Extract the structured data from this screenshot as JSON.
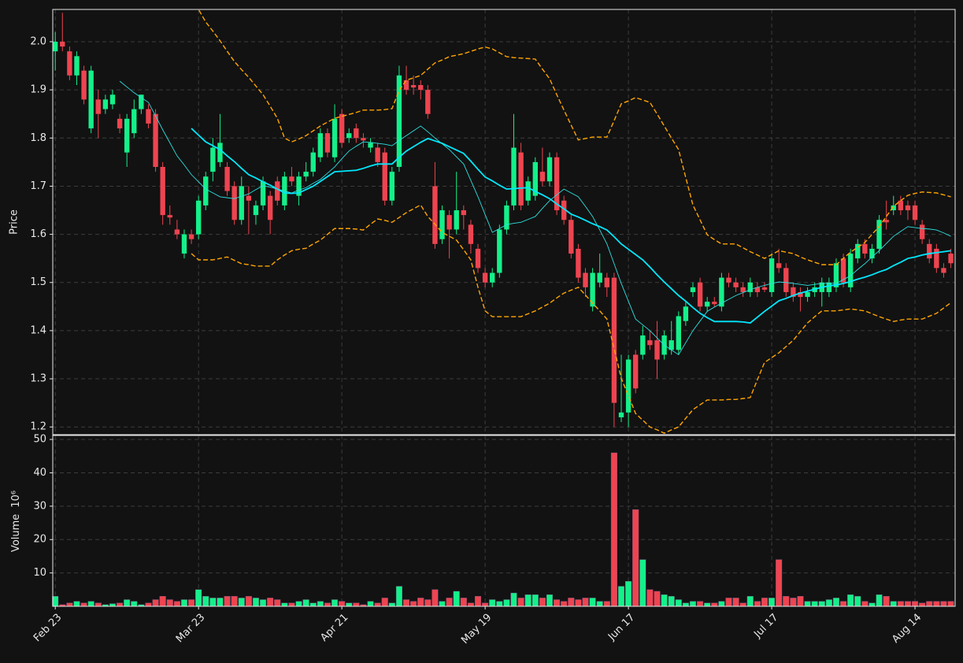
{
  "chart_data": {
    "type": "candlestick",
    "ylabel": "Price",
    "categories": [
      "Feb 23",
      null,
      null,
      null,
      null,
      null,
      null,
      null,
      null,
      null,
      null,
      null,
      null,
      null,
      null,
      null,
      null,
      null,
      null,
      null,
      "Mar 23",
      null,
      null,
      null,
      null,
      null,
      null,
      null,
      null,
      null,
      null,
      null,
      null,
      null,
      null,
      null,
      null,
      null,
      null,
      null,
      "Apr 21",
      null,
      null,
      null,
      null,
      null,
      null,
      null,
      null,
      null,
      null,
      null,
      null,
      null,
      null,
      null,
      null,
      null,
      null,
      null,
      "May 19",
      null,
      null,
      null,
      null,
      null,
      null,
      null,
      null,
      null,
      null,
      null,
      null,
      null,
      null,
      null,
      null,
      null,
      null,
      null,
      "Jun 17",
      null,
      null,
      null,
      null,
      null,
      null,
      null,
      null,
      null,
      null,
      null,
      null,
      null,
      null,
      null,
      null,
      null,
      null,
      null,
      "Jul 17",
      null,
      null,
      null,
      null,
      null,
      null,
      null,
      null,
      null,
      null,
      null,
      null,
      null,
      null,
      null,
      null,
      null,
      null,
      null,
      "Aug 14",
      null,
      null,
      null,
      null,
      null
    ],
    "open": [
      1.98,
      2.0,
      1.98,
      1.93,
      1.94,
      1.82,
      1.88,
      1.86,
      1.87,
      1.84,
      1.77,
      1.81,
      1.86,
      1.86,
      1.85,
      1.74,
      1.64,
      1.61,
      1.56,
      1.6,
      1.6,
      1.66,
      1.73,
      1.75,
      1.74,
      1.7,
      1.63,
      1.68,
      1.64,
      1.66,
      1.68,
      1.71,
      1.66,
      1.72,
      1.68,
      1.72,
      1.73,
      1.76,
      1.81,
      1.76,
      1.85,
      1.8,
      1.82,
      1.8,
      1.78,
      1.78,
      1.77,
      1.67,
      1.74,
      1.92,
      1.91,
      1.91,
      1.9,
      1.7,
      1.59,
      1.64,
      1.61,
      1.65,
      1.62,
      1.57,
      1.52,
      1.5,
      1.52,
      1.61,
      1.66,
      1.77,
      1.67,
      1.68,
      1.73,
      1.71,
      1.76,
      1.67,
      1.63,
      1.57,
      1.52,
      1.45,
      1.5,
      1.51,
      1.51,
      1.22,
      1.23,
      1.35,
      1.35,
      1.38,
      1.38,
      1.35,
      1.36,
      1.36,
      1.42,
      1.48,
      1.5,
      1.45,
      1.46,
      1.45,
      1.51,
      1.5,
      1.49,
      1.48,
      1.49,
      1.49,
      1.48,
      1.54,
      1.53,
      1.49,
      1.48,
      1.47,
      1.48,
      1.48,
      1.48,
      1.49,
      1.55,
      1.49,
      1.55,
      1.58,
      1.55,
      1.57,
      1.63,
      1.65,
      1.67,
      1.66,
      1.66,
      1.62,
      1.58,
      1.57,
      1.53,
      1.56
    ],
    "high": [
      2.02,
      2.06,
      1.99,
      1.98,
      1.95,
      1.95,
      1.9,
      1.89,
      1.9,
      1.85,
      1.85,
      1.88,
      1.89,
      1.87,
      1.86,
      1.75,
      1.66,
      1.63,
      1.61,
      1.61,
      1.68,
      1.73,
      1.8,
      1.85,
      1.75,
      1.71,
      1.72,
      1.7,
      1.67,
      1.72,
      1.69,
      1.72,
      1.73,
      1.74,
      1.73,
      1.75,
      1.78,
      1.82,
      1.82,
      1.87,
      1.86,
      1.82,
      1.83,
      1.81,
      1.8,
      1.79,
      1.78,
      1.74,
      1.95,
      1.95,
      1.93,
      1.92,
      1.91,
      1.75,
      1.66,
      1.65,
      1.73,
      1.66,
      1.63,
      1.58,
      1.53,
      1.53,
      1.62,
      1.67,
      1.85,
      1.79,
      1.72,
      1.76,
      1.78,
      1.77,
      1.77,
      1.68,
      1.64,
      1.58,
      1.53,
      1.53,
      1.56,
      1.52,
      1.52,
      1.35,
      1.35,
      1.36,
      1.41,
      1.4,
      1.42,
      1.4,
      1.42,
      1.44,
      1.46,
      1.5,
      1.51,
      1.47,
      1.47,
      1.52,
      1.52,
      1.51,
      1.5,
      1.51,
      1.5,
      1.5,
      1.56,
      1.57,
      1.54,
      1.5,
      1.49,
      1.49,
      1.5,
      1.51,
      1.51,
      1.55,
      1.56,
      1.57,
      1.59,
      1.59,
      1.58,
      1.64,
      1.67,
      1.68,
      1.68,
      1.67,
      1.67,
      1.63,
      1.59,
      1.58,
      1.54,
      1.57
    ],
    "low": [
      1.94,
      1.98,
      1.92,
      1.91,
      1.87,
      1.81,
      1.8,
      1.85,
      1.86,
      1.81,
      1.74,
      1.8,
      1.85,
      1.82,
      1.73,
      1.62,
      1.62,
      1.59,
      1.55,
      1.58,
      1.59,
      1.65,
      1.71,
      1.74,
      1.68,
      1.62,
      1.62,
      1.6,
      1.62,
      1.65,
      1.6,
      1.66,
      1.65,
      1.7,
      1.66,
      1.71,
      1.72,
      1.75,
      1.76,
      1.75,
      1.78,
      1.79,
      1.79,
      1.78,
      1.77,
      1.74,
      1.66,
      1.66,
      1.73,
      1.89,
      1.89,
      1.88,
      1.84,
      1.57,
      1.58,
      1.55,
      1.6,
      1.61,
      1.56,
      1.52,
      1.49,
      1.49,
      1.51,
      1.6,
      1.65,
      1.65,
      1.66,
      1.67,
      1.7,
      1.7,
      1.64,
      1.62,
      1.55,
      1.5,
      1.47,
      1.44,
      1.49,
      1.47,
      1.2,
      1.21,
      1.2,
      1.27,
      1.34,
      1.36,
      1.3,
      1.34,
      1.35,
      1.35,
      1.41,
      1.47,
      1.44,
      1.44,
      1.45,
      1.44,
      1.49,
      1.48,
      1.47,
      1.47,
      1.47,
      1.48,
      1.47,
      1.52,
      1.47,
      1.46,
      1.44,
      1.46,
      1.47,
      1.45,
      1.47,
      1.48,
      1.49,
      1.48,
      1.54,
      1.55,
      1.54,
      1.56,
      1.61,
      1.64,
      1.64,
      1.63,
      1.62,
      1.58,
      1.54,
      1.52,
      1.51,
      1.53
    ],
    "close": [
      2.0,
      1.99,
      1.93,
      1.97,
      1.88,
      1.94,
      1.85,
      1.88,
      1.89,
      1.82,
      1.84,
      1.86,
      1.89,
      1.83,
      1.74,
      1.64,
      1.635,
      1.6,
      1.6,
      1.59,
      1.67,
      1.72,
      1.78,
      1.79,
      1.69,
      1.63,
      1.7,
      1.67,
      1.66,
      1.71,
      1.63,
      1.67,
      1.72,
      1.71,
      1.72,
      1.73,
      1.77,
      1.81,
      1.77,
      1.84,
      1.79,
      1.81,
      1.8,
      1.795,
      1.79,
      1.75,
      1.67,
      1.73,
      1.93,
      1.9,
      1.905,
      1.9,
      1.85,
      1.58,
      1.65,
      1.61,
      1.65,
      1.64,
      1.58,
      1.53,
      1.5,
      1.52,
      1.61,
      1.66,
      1.78,
      1.66,
      1.71,
      1.75,
      1.71,
      1.76,
      1.65,
      1.63,
      1.56,
      1.51,
      1.49,
      1.52,
      1.52,
      1.49,
      1.25,
      1.23,
      1.34,
      1.28,
      1.39,
      1.37,
      1.34,
      1.39,
      1.38,
      1.43,
      1.45,
      1.49,
      1.45,
      1.46,
      1.455,
      1.51,
      1.5,
      1.49,
      1.48,
      1.5,
      1.48,
      1.485,
      1.55,
      1.53,
      1.48,
      1.47,
      1.47,
      1.48,
      1.49,
      1.5,
      1.5,
      1.54,
      1.5,
      1.56,
      1.58,
      1.56,
      1.57,
      1.63,
      1.625,
      1.66,
      1.65,
      1.65,
      1.63,
      1.59,
      1.55,
      1.53,
      1.52,
      1.54
    ],
    "up_color": "#14f08a",
    "down_color": "#ee4450",
    "lines": [
      {
        "color": "#00e8ff",
        "width": 1.8,
        "dashed": false,
        "values": [
          null,
          null,
          null,
          null,
          null,
          null,
          null,
          null,
          null,
          null,
          null,
          null,
          null,
          null,
          null,
          null,
          null,
          null,
          null,
          1.82,
          1.806,
          1.792,
          1.784,
          1.776,
          1.763,
          1.751,
          1.737,
          1.724,
          1.717,
          1.709,
          1.702,
          1.694,
          1.686,
          1.685,
          1.686,
          1.693,
          1.7,
          1.71,
          1.72,
          1.73,
          1.731,
          1.732,
          1.733,
          1.737,
          1.742,
          1.746,
          1.746,
          1.746,
          1.76,
          1.773,
          1.782,
          1.791,
          1.799,
          1.794,
          1.789,
          1.782,
          1.775,
          1.768,
          1.752,
          1.735,
          1.719,
          1.711,
          1.702,
          1.694,
          1.695,
          1.696,
          1.697,
          1.689,
          1.682,
          1.674,
          1.663,
          1.653,
          1.642,
          1.636,
          1.629,
          1.622,
          1.616,
          1.609,
          1.595,
          1.58,
          1.569,
          1.558,
          1.547,
          1.532,
          1.516,
          1.501,
          1.487,
          1.473,
          1.461,
          1.448,
          1.436,
          1.427,
          1.419,
          1.419,
          1.419,
          1.419,
          1.418,
          1.416,
          1.428,
          1.44,
          1.451,
          1.462,
          1.467,
          1.473,
          1.478,
          1.482,
          1.486,
          1.49,
          1.493,
          1.495,
          1.498,
          1.502,
          1.507,
          1.511,
          1.516,
          1.522,
          1.527,
          1.535,
          1.542,
          1.55,
          1.553,
          1.557,
          1.56,
          1.562,
          1.564,
          1.566
        ]
      },
      {
        "color": "#2ee0e0",
        "width": 0.9,
        "dashed": false,
        "values": [
          null,
          null,
          null,
          null,
          null,
          null,
          null,
          null,
          null,
          1.918,
          1.906,
          1.894,
          1.884,
          1.874,
          1.846,
          1.817,
          1.79,
          1.763,
          1.744,
          1.724,
          1.709,
          1.694,
          1.686,
          1.678,
          1.676,
          1.674,
          1.679,
          1.684,
          1.693,
          1.701,
          1.698,
          1.694,
          1.69,
          1.686,
          1.692,
          1.697,
          1.706,
          1.714,
          1.727,
          1.74,
          1.757,
          1.773,
          1.783,
          1.792,
          1.791,
          1.789,
          1.787,
          1.784,
          1.795,
          1.805,
          1.815,
          1.825,
          1.813,
          1.8,
          1.788,
          1.776,
          1.761,
          1.746,
          1.712,
          1.678,
          1.641,
          1.604,
          1.612,
          1.62,
          1.623,
          1.625,
          1.631,
          1.637,
          1.654,
          1.67,
          1.682,
          1.694,
          1.686,
          1.678,
          1.658,
          1.637,
          1.609,
          1.58,
          1.539,
          1.498,
          1.461,
          1.424,
          1.412,
          1.4,
          1.385,
          1.37,
          1.36,
          1.35,
          1.375,
          1.4,
          1.42,
          1.44,
          1.449,
          1.457,
          1.465,
          1.473,
          1.479,
          1.485,
          1.49,
          1.494,
          1.498,
          1.501,
          1.5,
          1.498,
          1.496,
          1.494,
          1.496,
          1.498,
          1.498,
          1.498,
          1.506,
          1.514,
          1.527,
          1.539,
          1.553,
          1.566,
          1.581,
          1.596,
          1.606,
          1.616,
          1.614,
          1.612,
          1.611,
          1.609,
          1.603,
          1.596
        ]
      },
      {
        "color": "#ffa500",
        "width": 1.4,
        "dashed": true,
        "values": [
          null,
          null,
          null,
          null,
          null,
          null,
          null,
          null,
          null,
          null,
          null,
          null,
          null,
          null,
          null,
          null,
          null,
          null,
          null,
          2.09,
          2.067,
          2.041,
          2.022,
          2.002,
          1.98,
          1.959,
          1.942,
          1.926,
          1.908,
          1.89,
          1.866,
          1.841,
          1.8,
          1.792,
          1.798,
          1.805,
          1.815,
          1.825,
          1.833,
          1.841,
          1.845,
          1.849,
          1.853,
          1.858,
          1.858,
          1.858,
          1.859,
          1.861,
          1.899,
          1.92,
          1.925,
          1.93,
          1.943,
          1.956,
          1.962,
          1.969,
          1.972,
          1.975,
          1.98,
          1.985,
          1.989,
          1.985,
          1.977,
          1.969,
          1.967,
          1.966,
          1.965,
          1.964,
          1.943,
          1.923,
          1.89,
          1.858,
          1.827,
          1.796,
          1.799,
          1.802,
          1.802,
          1.802,
          1.836,
          1.871,
          1.877,
          1.884,
          1.879,
          1.874,
          1.85,
          1.825,
          1.8,
          1.776,
          1.718,
          1.661,
          1.63,
          1.599,
          1.589,
          1.58,
          1.58,
          1.58,
          1.572,
          1.564,
          1.557,
          1.55,
          1.558,
          1.566,
          1.563,
          1.56,
          1.553,
          1.547,
          1.542,
          1.537,
          1.537,
          1.537,
          1.55,
          1.563,
          1.573,
          1.583,
          1.6,
          1.616,
          1.637,
          1.658,
          1.67,
          1.681,
          1.685,
          1.688,
          1.687,
          1.686,
          1.682,
          1.678
        ]
      },
      {
        "color": "#ffa500",
        "width": 1.4,
        "dashed": true,
        "values": [
          null,
          null,
          null,
          null,
          null,
          null,
          null,
          null,
          null,
          null,
          null,
          null,
          null,
          null,
          null,
          null,
          null,
          null,
          null,
          1.56,
          1.547,
          1.547,
          1.547,
          1.55,
          1.553,
          1.546,
          1.539,
          1.537,
          1.534,
          1.534,
          1.534,
          1.547,
          1.557,
          1.566,
          1.569,
          1.571,
          1.58,
          1.588,
          1.6,
          1.612,
          1.612,
          1.612,
          1.611,
          1.609,
          1.621,
          1.632,
          1.629,
          1.625,
          1.635,
          1.645,
          1.653,
          1.661,
          1.637,
          1.621,
          1.604,
          1.596,
          1.588,
          1.568,
          1.547,
          1.49,
          1.441,
          1.429,
          1.429,
          1.429,
          1.429,
          1.429,
          1.435,
          1.441,
          1.449,
          1.457,
          1.468,
          1.478,
          1.484,
          1.49,
          1.474,
          1.457,
          1.441,
          1.424,
          1.363,
          1.301,
          1.265,
          1.228,
          1.214,
          1.2,
          1.194,
          1.187,
          1.194,
          1.2,
          1.218,
          1.236,
          1.246,
          1.256,
          1.256,
          1.256,
          1.257,
          1.257,
          1.259,
          1.261,
          1.298,
          1.334,
          1.344,
          1.354,
          1.367,
          1.38,
          1.398,
          1.416,
          1.429,
          1.441,
          1.441,
          1.441,
          1.443,
          1.445,
          1.443,
          1.441,
          1.435,
          1.429,
          1.424,
          1.419,
          1.422,
          1.424,
          1.424,
          1.424,
          1.43,
          1.436,
          1.447,
          1.458
        ]
      }
    ],
    "xlim": [
      -0.35,
      125.6
    ],
    "ylim": [
      1.184,
      2.067
    ],
    "yticks": [
      1.2,
      1.3,
      1.4,
      1.5,
      1.6,
      1.7,
      1.8,
      1.9,
      {
        "value": 2.0,
        "label": "2.0"
      }
    ],
    "grid": true,
    "volume": {
      "ylabel": "Volume",
      "scale_label": "10⁶",
      "ylim": [
        0,
        51.2
      ],
      "yticks": [
        10,
        20,
        30,
        40,
        50
      ],
      "values": [
        3,
        0.5,
        1,
        1.5,
        1,
        1.5,
        1,
        0.5,
        0.8,
        1,
        2,
        1.5,
        0.5,
        1,
        2,
        3,
        2,
        1.5,
        2,
        2,
        5,
        3,
        2.5,
        2.5,
        3,
        3,
        2.5,
        3,
        2.5,
        2,
        2.5,
        2,
        1,
        1,
        1.5,
        2,
        1,
        1.5,
        1,
        2,
        1.5,
        1,
        1,
        0.5,
        1.5,
        1,
        2.5,
        1,
        6,
        2,
        1.5,
        2.5,
        2,
        5,
        1.5,
        2.5,
        4.5,
        2.5,
        1,
        3,
        1,
        2,
        1.5,
        2,
        4,
        2.5,
        3.5,
        3.5,
        2.5,
        3.5,
        2,
        1.5,
        2.5,
        2,
        2.5,
        2.5,
        1.5,
        1.5,
        46,
        6,
        7.5,
        29,
        14,
        5,
        4.5,
        3.5,
        3,
        2,
        1,
        1.5,
        1.5,
        1,
        1,
        1.5,
        2.5,
        2.5,
        1,
        3,
        1.5,
        2.5,
        2.5,
        14,
        3,
        2.5,
        3,
        1.5,
        1.5,
        1.5,
        2,
        2.5,
        1.5,
        3.5,
        3,
        1.5,
        1,
        3.5,
        3,
        1.5,
        1.5,
        1.5,
        1.5,
        1,
        1.5,
        1.5,
        1.5,
        1.5
      ]
    }
  }
}
